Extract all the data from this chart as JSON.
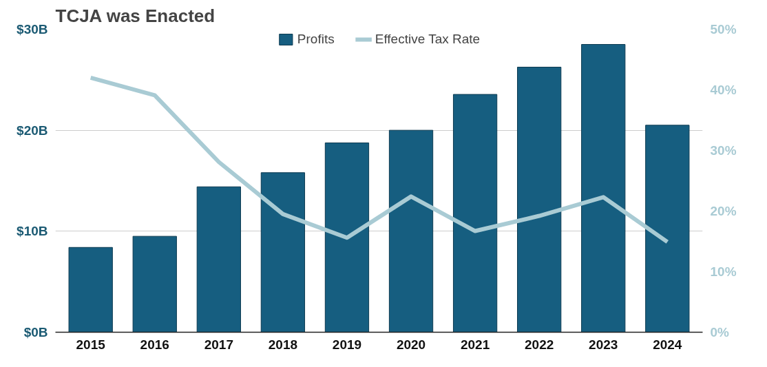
{
  "chart_data": {
    "type": "bar",
    "title": "TCJA was Enacted",
    "categories": [
      "2015",
      "2016",
      "2017",
      "2018",
      "2019",
      "2020",
      "2021",
      "2022",
      "2023",
      "2024"
    ],
    "series": [
      {
        "name": "Profits",
        "color": "#165e80",
        "values": [
          8.4,
          9.5,
          14.4,
          15.8,
          18.75,
          20.0,
          23.55,
          26.25,
          28.5,
          20.5
        ]
      },
      {
        "name": "Effective Tax Rate",
        "type": "line",
        "axis": "y2",
        "color": "#a9cbd4",
        "values": [
          42.0,
          39.1,
          28.1,
          19.5,
          15.6,
          22.4,
          16.7,
          19.2,
          22.3,
          14.9
        ]
      }
    ],
    "ylim": [
      0,
      30
    ],
    "yticks": [
      {
        "value": 0,
        "label": "$0B"
      },
      {
        "value": 10,
        "label": "$10B"
      },
      {
        "value": 20,
        "label": "$20B"
      },
      {
        "value": 30,
        "label": "$30B"
      }
    ],
    "y2lim": [
      0,
      50
    ],
    "y2ticks": [
      {
        "value": 0,
        "label": "0%"
      },
      {
        "value": 10,
        "label": "10%"
      },
      {
        "value": 20,
        "label": "20%"
      },
      {
        "value": 30,
        "label": "30%"
      },
      {
        "value": 40,
        "label": "40%"
      },
      {
        "value": 50,
        "label": "50%"
      }
    ],
    "grid": "y",
    "legend": "top",
    "marker": "none",
    "line_style": "solid"
  }
}
